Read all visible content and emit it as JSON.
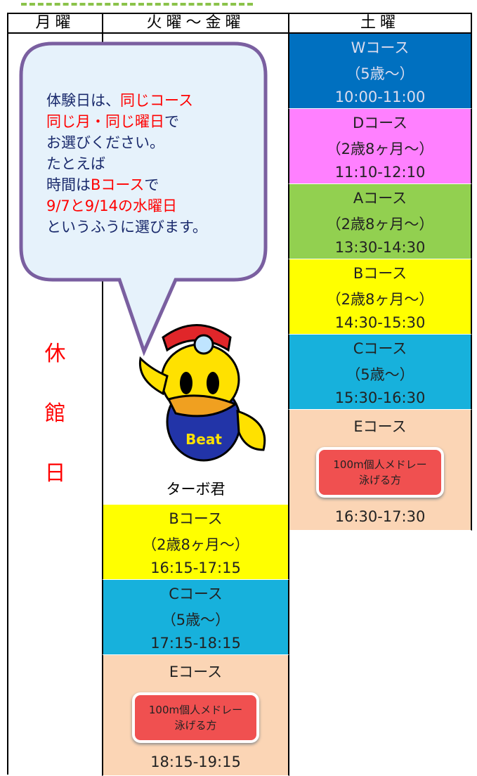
{
  "header": {
    "columns": [
      "月曜",
      "火曜～金曜",
      "土曜"
    ]
  },
  "monday": {
    "label": [
      "休",
      "館",
      "日"
    ]
  },
  "bubble": {
    "lines": [
      [
        {
          "text": "体験日は、",
          "emphasis": false
        },
        {
          "text": "同じコース",
          "emphasis": true
        }
      ],
      [
        {
          "text": "同じ月・同じ曜日",
          "emphasis": true
        },
        {
          "text": "で",
          "emphasis": false
        }
      ],
      [
        {
          "text": "お選びください。",
          "emphasis": false
        }
      ],
      [
        {
          "text": "たとえば",
          "emphasis": false
        }
      ],
      [
        {
          "text": "時間は",
          "emphasis": false
        },
        {
          "text": "Bコース",
          "emphasis": true
        },
        {
          "text": "で",
          "emphasis": false
        }
      ],
      [
        {
          "text": "9/7と9/14の水曜日",
          "emphasis": true
        }
      ],
      [
        {
          "text": "というふうに選びます。",
          "emphasis": false
        }
      ]
    ]
  },
  "mascot": {
    "name": "ターボ君",
    "shirt_text": "Beat"
  },
  "weekday_courses": [
    {
      "name": "Bコース",
      "age": "（2歳8ヶ月～）",
      "time": "16:15-17:15",
      "color": "#ffff00"
    },
    {
      "name": "Cコース",
      "age": "（5歳～）",
      "time": "17:15-18:15",
      "color": "#17b1dc"
    },
    {
      "name": "Eコース",
      "note": [
        "100m個人メドレー",
        "泳げる方"
      ],
      "time": "18:15-19:15",
      "color": "#fbd5b5"
    }
  ],
  "saturday_courses": [
    {
      "name": "Wコース",
      "age": "（5歳～）",
      "time": "10:00-11:00",
      "color": "#0070c0"
    },
    {
      "name": "Dコース",
      "age": "（2歳8ヶ月～）",
      "time": "11:10-12:10",
      "color": "#ff80ff"
    },
    {
      "name": "Aコース",
      "age": "（2歳8ヶ月～）",
      "time": "13:30-14:30",
      "color": "#92d050"
    },
    {
      "name": "Bコース",
      "age": "（2歳8ヶ月～）",
      "time": "14:30-15:30",
      "color": "#ffff00"
    },
    {
      "name": "Cコース",
      "age": "（5歳～）",
      "time": "15:30-16:30",
      "color": "#17b1dc"
    },
    {
      "name": "Eコース",
      "note": [
        "100m個人メドレー",
        "泳げる方"
      ],
      "time": "16:30-17:30",
      "color": "#fbd5b5"
    }
  ]
}
